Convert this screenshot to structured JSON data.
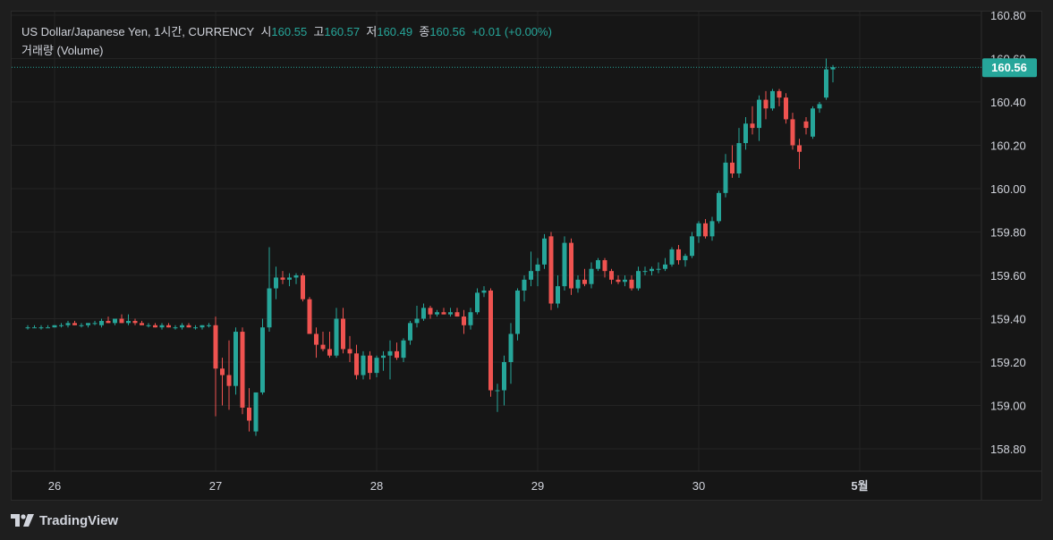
{
  "legend": {
    "symbol": "US Dollar/Japanese Yen, 1시간, CURRENCY",
    "open_label": "시",
    "open": "160.55",
    "high_label": "고",
    "high": "160.57",
    "low_label": "저",
    "low": "160.49",
    "close_label": "종",
    "close": "160.56",
    "change": "+0.01 (+0.00%)",
    "volume_label": "거래량 (Volume)"
  },
  "price_tag": "160.56",
  "footer": {
    "brand": "TradingView",
    "logo_icon": "tradingview-logo-icon"
  },
  "colors": {
    "up": "#26a69a",
    "down": "#ef5350",
    "background": "#161616",
    "grid": "#242424",
    "text": "#d1d4dc"
  },
  "chart_data": {
    "type": "candlestick",
    "y_ticks": [
      "160.80",
      "160.60",
      "160.40",
      "160.20",
      "160.00",
      "159.80",
      "159.60",
      "159.40",
      "159.20",
      "159.00",
      "158.80"
    ],
    "y_tick_values": [
      160.8,
      160.6,
      160.4,
      160.2,
      160.0,
      159.8,
      159.6,
      159.4,
      159.2,
      159.0,
      158.8
    ],
    "x_ticks": [
      "26",
      "27",
      "28",
      "29",
      "30",
      "5월"
    ],
    "x_tick_bold": [
      false,
      false,
      false,
      false,
      false,
      true
    ],
    "ylim": [
      158.75,
      160.84
    ],
    "grid": true,
    "last_price": 160.56,
    "candles_note_x": "index = hours from 26 00:00 (each day = 24)",
    "candles": [
      [
        -4,
        159.36,
        159.37,
        159.35,
        159.36
      ],
      [
        -3,
        159.36,
        159.37,
        159.36,
        159.36
      ],
      [
        -2,
        159.36,
        159.37,
        159.35,
        159.36
      ],
      [
        -1,
        159.36,
        159.37,
        159.36,
        159.36
      ],
      [
        0,
        159.36,
        159.37,
        159.36,
        159.37
      ],
      [
        1,
        159.37,
        159.38,
        159.36,
        159.37
      ],
      [
        2,
        159.37,
        159.39,
        159.36,
        159.38
      ],
      [
        3,
        159.38,
        159.39,
        159.37,
        159.37
      ],
      [
        4,
        159.37,
        159.38,
        159.36,
        159.37
      ],
      [
        5,
        159.37,
        159.38,
        159.36,
        159.38
      ],
      [
        6,
        159.38,
        159.39,
        159.37,
        159.38
      ],
      [
        7,
        159.37,
        159.4,
        159.36,
        159.39
      ],
      [
        8,
        159.39,
        159.41,
        159.38,
        159.38
      ],
      [
        9,
        159.38,
        159.4,
        159.37,
        159.4
      ],
      [
        10,
        159.4,
        159.42,
        159.38,
        159.38
      ],
      [
        11,
        159.38,
        159.42,
        159.37,
        159.39
      ],
      [
        12,
        159.39,
        159.4,
        159.37,
        159.38
      ],
      [
        13,
        159.38,
        159.39,
        159.37,
        159.37
      ],
      [
        14,
        159.37,
        159.38,
        159.36,
        159.37
      ],
      [
        15,
        159.37,
        159.38,
        159.36,
        159.36
      ],
      [
        16,
        159.36,
        159.38,
        159.35,
        159.37
      ],
      [
        17,
        159.37,
        159.38,
        159.36,
        159.36
      ],
      [
        18,
        159.36,
        159.37,
        159.35,
        159.36
      ],
      [
        19,
        159.36,
        159.38,
        159.35,
        159.37
      ],
      [
        20,
        159.37,
        159.38,
        159.36,
        159.36
      ],
      [
        21,
        159.36,
        159.37,
        159.35,
        159.36
      ],
      [
        22,
        159.36,
        159.37,
        159.35,
        159.37
      ],
      [
        23,
        159.37,
        159.38,
        159.36,
        159.37
      ],
      [
        24,
        159.37,
        159.41,
        158.95,
        159.17
      ],
      [
        25,
        159.17,
        159.22,
        159.0,
        159.14
      ],
      [
        26,
        159.14,
        159.3,
        158.98,
        159.09
      ],
      [
        27,
        159.09,
        159.36,
        159.05,
        159.34
      ],
      [
        28,
        159.34,
        159.36,
        158.96,
        158.99
      ],
      [
        29,
        158.99,
        159.08,
        158.88,
        158.93
      ],
      [
        30,
        158.88,
        159.05,
        158.86,
        159.06
      ],
      [
        31,
        159.06,
        159.4,
        159.05,
        159.36
      ],
      [
        32,
        159.36,
        159.73,
        159.34,
        159.54
      ],
      [
        33,
        159.54,
        159.64,
        159.49,
        159.59
      ],
      [
        34,
        159.59,
        159.62,
        159.56,
        159.58
      ],
      [
        35,
        159.58,
        159.61,
        159.55,
        159.59
      ],
      [
        36,
        159.59,
        159.61,
        159.56,
        159.6
      ],
      [
        37,
        159.6,
        159.61,
        159.48,
        159.49
      ],
      [
        38,
        159.49,
        159.5,
        159.34,
        159.33
      ],
      [
        39,
        159.33,
        159.36,
        159.22,
        159.28
      ],
      [
        40,
        159.28,
        159.34,
        159.25,
        159.26
      ],
      [
        41,
        159.26,
        159.34,
        159.22,
        159.23
      ],
      [
        42,
        159.23,
        159.45,
        159.22,
        159.4
      ],
      [
        43,
        159.4,
        159.45,
        159.24,
        159.26
      ],
      [
        44,
        159.26,
        159.32,
        159.2,
        159.24
      ],
      [
        45,
        159.24,
        159.28,
        159.12,
        159.14
      ],
      [
        46,
        159.14,
        159.25,
        159.12,
        159.23
      ],
      [
        47,
        159.23,
        159.25,
        159.12,
        159.15
      ],
      [
        48,
        159.15,
        159.23,
        159.13,
        159.22
      ],
      [
        49,
        159.22,
        159.25,
        159.16,
        159.23
      ],
      [
        50,
        159.23,
        159.3,
        159.12,
        159.25
      ],
      [
        51,
        159.25,
        159.29,
        159.21,
        159.22
      ],
      [
        52,
        159.22,
        159.31,
        159.2,
        159.3
      ],
      [
        53,
        159.3,
        159.39,
        159.28,
        159.38
      ],
      [
        54,
        159.38,
        159.46,
        159.36,
        159.4
      ],
      [
        55,
        159.4,
        159.47,
        159.39,
        159.45
      ],
      [
        56,
        159.45,
        159.46,
        159.4,
        159.42
      ],
      [
        57,
        159.42,
        159.44,
        159.41,
        159.43
      ],
      [
        58,
        159.43,
        159.45,
        159.42,
        159.42
      ],
      [
        59,
        159.42,
        159.45,
        159.41,
        159.43
      ],
      [
        60,
        159.43,
        159.45,
        159.41,
        159.41
      ],
      [
        61,
        159.41,
        159.44,
        159.33,
        159.37
      ],
      [
        62,
        159.37,
        159.45,
        159.35,
        159.43
      ],
      [
        63,
        159.43,
        159.54,
        159.42,
        159.52
      ],
      [
        64,
        159.52,
        159.55,
        159.5,
        159.53
      ],
      [
        65,
        159.53,
        159.54,
        159.04,
        159.07
      ],
      [
        66,
        159.07,
        159.1,
        158.97,
        159.07
      ],
      [
        67,
        159.07,
        159.23,
        159.0,
        159.2
      ],
      [
        68,
        159.2,
        159.38,
        159.1,
        159.33
      ],
      [
        69,
        159.33,
        159.54,
        159.3,
        159.53
      ],
      [
        70,
        159.53,
        159.6,
        159.48,
        159.58
      ],
      [
        71,
        159.58,
        159.71,
        159.55,
        159.62
      ],
      [
        72,
        159.62,
        159.68,
        159.55,
        159.65
      ],
      [
        73,
        159.65,
        159.79,
        159.63,
        159.77
      ],
      [
        74,
        159.78,
        159.8,
        159.44,
        159.47
      ],
      [
        75,
        159.47,
        159.6,
        159.45,
        159.55
      ],
      [
        76,
        159.55,
        159.78,
        159.53,
        159.75
      ],
      [
        77,
        159.75,
        159.77,
        159.51,
        159.54
      ],
      [
        78,
        159.54,
        159.6,
        159.52,
        159.58
      ],
      [
        79,
        159.58,
        159.63,
        159.55,
        159.56
      ],
      [
        80,
        159.56,
        159.66,
        159.54,
        159.63
      ],
      [
        81,
        159.63,
        159.68,
        159.62,
        159.67
      ],
      [
        82,
        159.67,
        159.68,
        159.59,
        159.62
      ],
      [
        83,
        159.62,
        159.63,
        159.56,
        159.58
      ],
      [
        84,
        159.58,
        159.6,
        159.56,
        159.57
      ],
      [
        85,
        159.57,
        159.6,
        159.55,
        159.58
      ],
      [
        86,
        159.58,
        159.6,
        159.53,
        159.54
      ],
      [
        87,
        159.54,
        159.64,
        159.53,
        159.62
      ],
      [
        88,
        159.62,
        159.64,
        159.6,
        159.62
      ],
      [
        89,
        159.62,
        159.64,
        159.6,
        159.63
      ],
      [
        90,
        159.63,
        159.66,
        159.61,
        159.63
      ],
      [
        91,
        159.63,
        159.68,
        159.62,
        159.65
      ],
      [
        92,
        159.65,
        159.73,
        159.64,
        159.72
      ],
      [
        93,
        159.72,
        159.74,
        159.65,
        159.67
      ],
      [
        94,
        159.67,
        159.7,
        159.64,
        159.69
      ],
      [
        95,
        159.69,
        159.8,
        159.68,
        159.78
      ],
      [
        96,
        159.78,
        159.85,
        159.75,
        159.84
      ],
      [
        97,
        159.84,
        159.86,
        159.77,
        159.78
      ],
      [
        98,
        159.78,
        159.87,
        159.76,
        159.85
      ],
      [
        99,
        159.85,
        159.99,
        159.84,
        159.98
      ],
      [
        100,
        159.98,
        160.16,
        159.96,
        160.12
      ],
      [
        101,
        160.12,
        160.2,
        160.05,
        160.07
      ],
      [
        102,
        160.07,
        160.28,
        160.05,
        160.21
      ],
      [
        103,
        160.21,
        160.33,
        160.18,
        160.3
      ],
      [
        104,
        160.3,
        160.38,
        160.25,
        160.28
      ],
      [
        105,
        160.28,
        160.43,
        160.22,
        160.41
      ],
      [
        106,
        160.41,
        160.45,
        160.32,
        160.37
      ],
      [
        107,
        160.37,
        160.46,
        160.36,
        160.45
      ],
      [
        108,
        160.45,
        160.46,
        160.38,
        160.42
      ],
      [
        109,
        160.42,
        160.44,
        160.3,
        160.32
      ],
      [
        110,
        160.32,
        160.35,
        160.18,
        160.2
      ],
      [
        111,
        160.2,
        160.23,
        160.09,
        160.17
      ],
      [
        112,
        160.31,
        160.33,
        160.25,
        160.28
      ],
      [
        113,
        160.24,
        160.38,
        160.23,
        160.37
      ],
      [
        114,
        160.37,
        160.4,
        160.35,
        160.39
      ],
      [
        115,
        160.42,
        160.6,
        160.41,
        160.55
      ],
      [
        116,
        160.55,
        160.57,
        160.49,
        160.56
      ]
    ]
  }
}
